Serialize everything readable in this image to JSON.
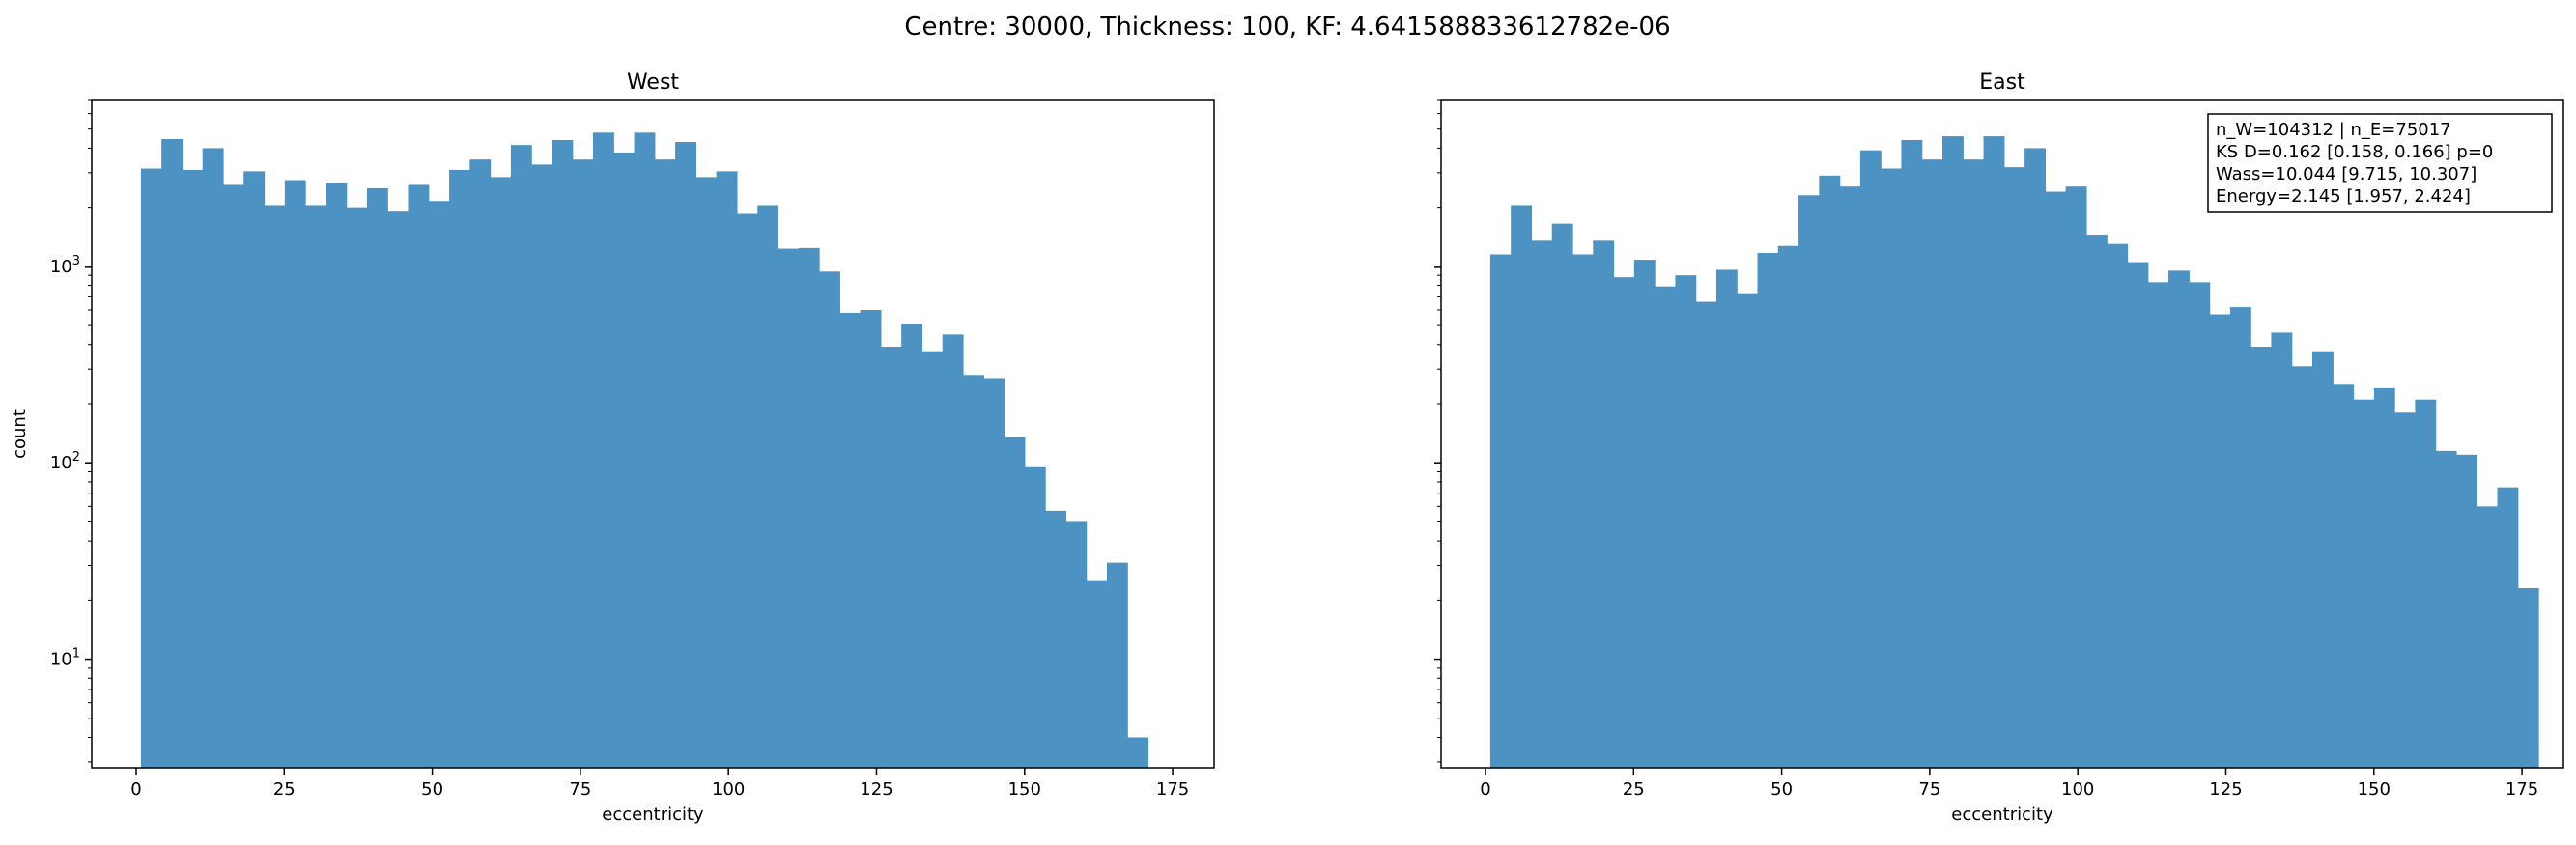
{
  "figure": {
    "suptitle": "Centre: 30000, Thickness: 100, KF: 4.641588833612782e-06",
    "bar_color": "#4c92c3"
  },
  "chart_data": [
    {
      "type": "bar",
      "subtype": "histogram",
      "title": "West",
      "xlabel": "eccentricity",
      "ylabel": "count",
      "xscale": "linear",
      "yscale": "log",
      "xlim": [
        -7.5,
        182
      ],
      "ylim": [
        2.8,
        7000
      ],
      "xticks": [
        0,
        25,
        50,
        75,
        100,
        125,
        150,
        175
      ],
      "yticks": [
        10,
        100,
        1000
      ],
      "ytick_labels": [
        {
          "base": "10",
          "exp": "1"
        },
        {
          "base": "10",
          "exp": "2"
        },
        {
          "base": "10",
          "exp": "3"
        }
      ],
      "bin_start": 0.8,
      "bin_width": 3.47,
      "counts": [
        3150,
        4450,
        3100,
        4000,
        2600,
        3050,
        2050,
        2750,
        2050,
        2650,
        2000,
        2500,
        1900,
        2600,
        2150,
        3100,
        3500,
        2850,
        4150,
        3300,
        4400,
        3500,
        4800,
        3800,
        4800,
        3500,
        4300,
        2850,
        3050,
        1850,
        2050,
        1230,
        1240,
        940,
        580,
        600,
        390,
        510,
        370,
        450,
        280,
        270,
        135,
        95,
        57,
        50,
        25,
        31,
        4
      ]
    },
    {
      "type": "bar",
      "subtype": "histogram",
      "title": "East",
      "xlabel": "eccentricity",
      "ylabel": "",
      "xscale": "linear",
      "yscale": "log",
      "xlim": [
        -7.5,
        182
      ],
      "ylim": [
        2.8,
        7000
      ],
      "xticks": [
        0,
        25,
        50,
        75,
        100,
        125,
        150,
        175
      ],
      "yticks": [
        10,
        100,
        1000
      ],
      "ytick_labels": [],
      "bin_start": 0.8,
      "bin_width": 3.47,
      "counts": [
        1150,
        2050,
        1350,
        1650,
        1150,
        1350,
        880,
        1080,
        790,
        900,
        660,
        960,
        730,
        1170,
        1270,
        2300,
        2900,
        2550,
        3900,
        3150,
        4400,
        3500,
        4600,
        3500,
        4600,
        3200,
        4000,
        2400,
        2550,
        1450,
        1300,
        1050,
        830,
        950,
        830,
        570,
        620,
        390,
        460,
        310,
        370,
        250,
        210,
        240,
        180,
        210,
        115,
        110,
        60,
        75,
        23
      ],
      "annotation": [
        "n_W=104312 | n_E=75017",
        "KS D=0.162 [0.158, 0.166]  p=0",
        "Wass=10.044 [9.715, 10.307]",
        "Energy=2.145 [1.957, 2.424]"
      ]
    }
  ]
}
